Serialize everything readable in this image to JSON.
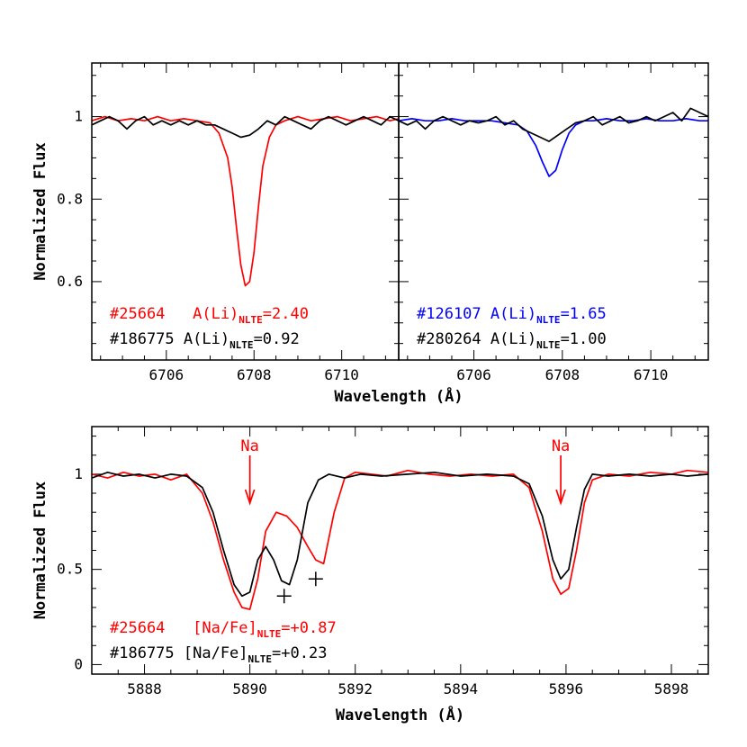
{
  "chart_data": [
    {
      "type": "line",
      "panel": "top-left",
      "xlabel": "Wavelength (Å)",
      "ylabel": "Normalized Flux",
      "xlim": [
        6704.3,
        6711.3
      ],
      "ylim": [
        0.41,
        1.13
      ],
      "xticks": [
        6706,
        6708,
        6710
      ],
      "yticks": [
        0.6,
        0.8,
        1
      ],
      "ytick_labels": [
        "0.6",
        "0.8",
        "1"
      ],
      "series": [
        {
          "name": "#25664",
          "color": "#ff0000",
          "x": [
            6704.3,
            6704.6,
            6704.9,
            6705.2,
            6705.5,
            6705.8,
            6706.1,
            6706.4,
            6706.7,
            6707.0,
            6707.2,
            6707.4,
            6707.5,
            6707.6,
            6707.7,
            6707.8,
            6707.9,
            6708.0,
            6708.1,
            6708.2,
            6708.35,
            6708.5,
            6708.7,
            6709.0,
            6709.3,
            6709.6,
            6709.9,
            6710.2,
            6710.5,
            6710.8,
            6711.1,
            6711.3
          ],
          "y": [
            0.99,
            1.0,
            0.99,
            0.995,
            0.99,
            1.0,
            0.99,
            0.995,
            0.99,
            0.985,
            0.96,
            0.9,
            0.83,
            0.73,
            0.64,
            0.59,
            0.6,
            0.67,
            0.78,
            0.88,
            0.95,
            0.98,
            0.99,
            1.0,
            0.99,
            0.995,
            1.0,
            0.99,
            0.995,
            1.0,
            0.99,
            0.995
          ]
        },
        {
          "name": "#186775",
          "color": "#000000",
          "x": [
            6704.3,
            6704.5,
            6704.7,
            6704.9,
            6705.1,
            6705.3,
            6705.5,
            6705.7,
            6705.9,
            6706.1,
            6706.3,
            6706.5,
            6706.7,
            6706.9,
            6707.1,
            6707.3,
            6707.5,
            6707.7,
            6707.9,
            6708.1,
            6708.3,
            6708.5,
            6708.7,
            6708.9,
            6709.1,
            6709.3,
            6709.5,
            6709.7,
            6709.9,
            6710.1,
            6710.3,
            6710.5,
            6710.7,
            6710.9,
            6711.1,
            6711.3
          ],
          "y": [
            0.98,
            0.99,
            1.0,
            0.99,
            0.97,
            0.99,
            1.0,
            0.98,
            0.99,
            0.98,
            0.99,
            0.98,
            0.99,
            0.98,
            0.98,
            0.97,
            0.96,
            0.95,
            0.955,
            0.97,
            0.99,
            0.98,
            1.0,
            0.99,
            0.98,
            0.97,
            0.99,
            1.0,
            0.99,
            0.98,
            0.99,
            1.0,
            0.99,
            0.98,
            1.0,
            0.99
          ]
        }
      ],
      "annotations": [
        {
          "prefix": "#25664   A(Li)",
          "sub": "NLTE",
          "suffix": "=2.40",
          "color": "#ff0000"
        },
        {
          "prefix": "#186775 A(Li)",
          "sub": "NLTE",
          "suffix": "=0.92",
          "color": "#000000"
        }
      ]
    },
    {
      "type": "line",
      "panel": "top-right",
      "xlabel": "Wavelength (Å)",
      "ylabel": "",
      "xlim": [
        6704.3,
        6711.3
      ],
      "ylim": [
        0.41,
        1.13
      ],
      "xticks": [
        6706,
        6708,
        6710
      ],
      "yticks": [
        0.6,
        0.8,
        1
      ],
      "series": [
        {
          "name": "#126107",
          "color": "#0000ff",
          "x": [
            6704.3,
            6704.6,
            6704.9,
            6705.2,
            6705.5,
            6705.8,
            6706.1,
            6706.4,
            6706.7,
            6707.0,
            6707.2,
            6707.4,
            6707.55,
            6707.7,
            6707.85,
            6708.0,
            6708.15,
            6708.3,
            6708.5,
            6708.7,
            6709.0,
            6709.3,
            6709.6,
            6709.9,
            6710.2,
            6710.5,
            6710.8,
            6711.1,
            6711.3
          ],
          "y": [
            0.99,
            0.995,
            0.99,
            0.99,
            0.995,
            0.99,
            0.99,
            0.99,
            0.985,
            0.98,
            0.965,
            0.93,
            0.89,
            0.855,
            0.87,
            0.92,
            0.96,
            0.98,
            0.99,
            0.99,
            0.995,
            0.99,
            0.99,
            0.995,
            0.99,
            0.99,
            0.995,
            0.99,
            0.99
          ]
        },
        {
          "name": "#280264",
          "color": "#000000",
          "x": [
            6704.3,
            6704.5,
            6704.7,
            6704.9,
            6705.1,
            6705.3,
            6705.5,
            6705.7,
            6705.9,
            6706.1,
            6706.3,
            6706.5,
            6706.7,
            6706.9,
            6707.1,
            6707.3,
            6707.5,
            6707.7,
            6707.9,
            6708.1,
            6708.3,
            6708.5,
            6708.7,
            6708.9,
            6709.1,
            6709.3,
            6709.5,
            6709.7,
            6709.9,
            6710.1,
            6710.3,
            6710.5,
            6710.7,
            6710.9,
            6711.1,
            6711.3
          ],
          "y": [
            0.99,
            0.98,
            0.99,
            0.97,
            0.99,
            1.0,
            0.99,
            0.98,
            0.99,
            0.985,
            0.99,
            1.0,
            0.98,
            0.99,
            0.97,
            0.96,
            0.95,
            0.94,
            0.955,
            0.97,
            0.985,
            0.99,
            1.0,
            0.98,
            0.99,
            1.0,
            0.985,
            0.99,
            1.0,
            0.99,
            1.0,
            1.01,
            0.99,
            1.02,
            1.01,
            1.0
          ]
        }
      ],
      "annotations": [
        {
          "prefix": "#126107 A(Li)",
          "sub": "NLTE",
          "suffix": "=1.65",
          "color": "#0000ff"
        },
        {
          "prefix": "#280264 A(Li)",
          "sub": "NLTE",
          "suffix": "=1.00",
          "color": "#000000"
        }
      ]
    },
    {
      "type": "line",
      "panel": "bottom",
      "xlabel": "Wavelength (Å)",
      "ylabel": "Normalized Flux",
      "xlim": [
        5887.0,
        5898.7
      ],
      "ylim": [
        -0.05,
        1.25
      ],
      "xticks": [
        5888,
        5890,
        5892,
        5894,
        5896,
        5898
      ],
      "yticks": [
        0,
        0.5,
        1
      ],
      "ytick_labels": [
        "0",
        "0.5",
        "1"
      ],
      "series": [
        {
          "name": "#25664",
          "color": "#ff0000",
          "x": [
            5887.0,
            5887.3,
            5887.6,
            5887.9,
            5888.2,
            5888.5,
            5888.8,
            5889.1,
            5889.3,
            5889.5,
            5889.7,
            5889.85,
            5890.0,
            5890.15,
            5890.3,
            5890.5,
            5890.7,
            5890.9,
            5891.1,
            5891.25,
            5891.4,
            5891.6,
            5891.8,
            5892.0,
            5892.3,
            5892.6,
            5893.0,
            5893.4,
            5893.8,
            5894.2,
            5894.6,
            5895.0,
            5895.3,
            5895.55,
            5895.75,
            5895.9,
            5896.05,
            5896.2,
            5896.35,
            5896.5,
            5896.8,
            5897.2,
            5897.6,
            5898.0,
            5898.3,
            5898.7
          ],
          "y": [
            1.0,
            0.98,
            1.01,
            0.99,
            1.0,
            0.97,
            1.0,
            0.9,
            0.75,
            0.55,
            0.38,
            0.3,
            0.29,
            0.45,
            0.7,
            0.8,
            0.78,
            0.72,
            0.62,
            0.55,
            0.53,
            0.8,
            0.98,
            1.01,
            1.0,
            0.99,
            1.02,
            1.0,
            0.99,
            1.0,
            0.99,
            1.0,
            0.93,
            0.7,
            0.45,
            0.37,
            0.4,
            0.6,
            0.85,
            0.97,
            1.0,
            0.99,
            1.01,
            1.0,
            1.02,
            1.01
          ]
        },
        {
          "name": "#186775",
          "color": "#000000",
          "x": [
            5887.0,
            5887.3,
            5887.6,
            5887.9,
            5888.2,
            5888.5,
            5888.8,
            5889.1,
            5889.3,
            5889.5,
            5889.7,
            5889.85,
            5890.0,
            5890.15,
            5890.3,
            5890.45,
            5890.6,
            5890.75,
            5890.9,
            5891.1,
            5891.3,
            5891.5,
            5891.8,
            5892.1,
            5892.5,
            5893.0,
            5893.5,
            5894.0,
            5894.5,
            5895.0,
            5895.3,
            5895.55,
            5895.75,
            5895.9,
            5896.05,
            5896.2,
            5896.35,
            5896.5,
            5896.8,
            5897.2,
            5897.6,
            5898.0,
            5898.3,
            5898.7
          ],
          "y": [
            0.98,
            1.01,
            0.99,
            1.0,
            0.98,
            1.0,
            0.99,
            0.93,
            0.8,
            0.6,
            0.42,
            0.36,
            0.38,
            0.55,
            0.62,
            0.55,
            0.44,
            0.42,
            0.55,
            0.85,
            0.97,
            1.0,
            0.98,
            1.0,
            0.99,
            1.0,
            1.01,
            0.99,
            1.0,
            0.99,
            0.95,
            0.78,
            0.55,
            0.45,
            0.5,
            0.72,
            0.92,
            1.0,
            0.99,
            1.0,
            0.99,
            1.0,
            0.99,
            1.0
          ]
        }
      ],
      "markers": [
        {
          "label": "Na",
          "x": 5890.0,
          "color": "#ff0000"
        },
        {
          "label": "Na",
          "x": 5895.9,
          "color": "#ff0000"
        }
      ],
      "crosses": [
        {
          "x": 5890.65,
          "y": 0.36
        },
        {
          "x": 5891.25,
          "y": 0.45
        }
      ],
      "annotations": [
        {
          "prefix": "#25664   [Na/Fe]",
          "sub": "NLTE",
          "suffix": "=+0.87",
          "color": "#ff0000"
        },
        {
          "prefix": "#186775 [Na/Fe]",
          "sub": "NLTE",
          "suffix": "=+0.23",
          "color": "#000000"
        }
      ]
    }
  ]
}
